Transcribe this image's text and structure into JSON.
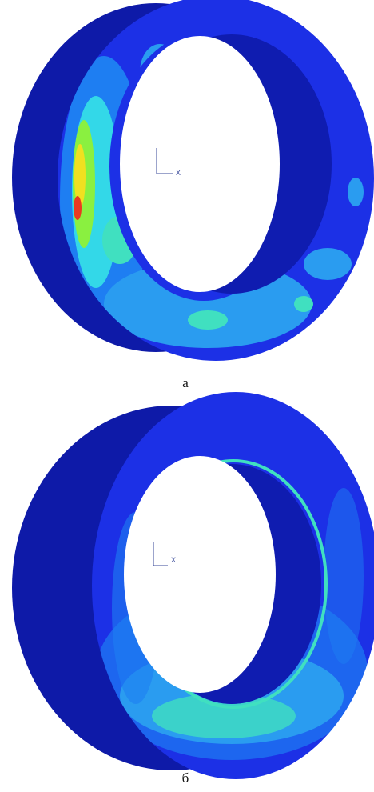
{
  "panels": [
    {
      "caption": "а",
      "axis_label": "X"
    },
    {
      "caption": "б",
      "axis_label": "X"
    }
  ]
}
